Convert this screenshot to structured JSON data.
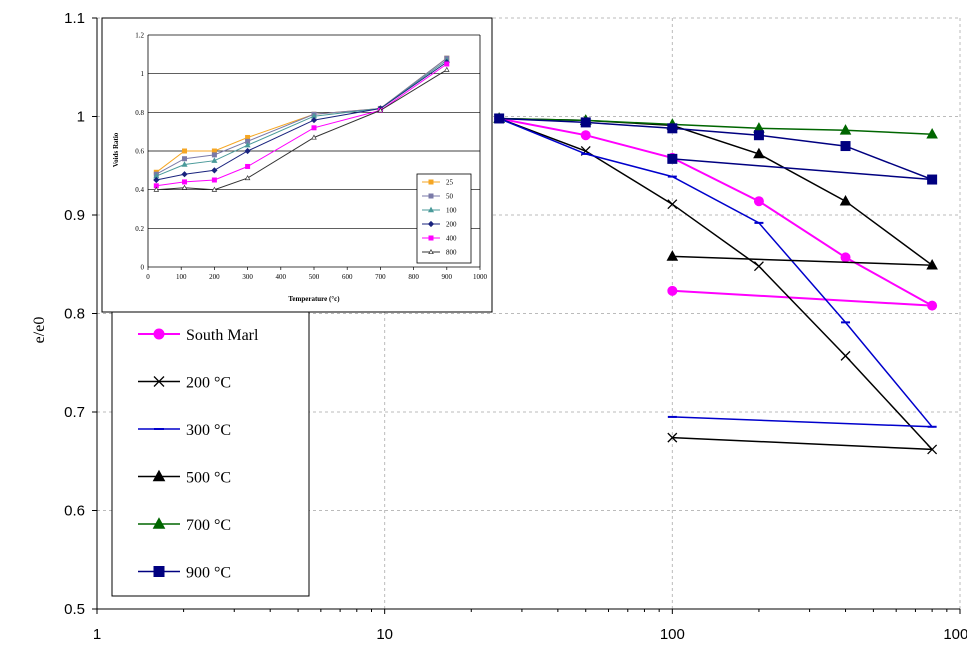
{
  "chart_data": [
    {
      "type": "line",
      "title": "",
      "xlabel": "",
      "ylabel": "e/e0",
      "x_scale": "log",
      "xlim": [
        1,
        1000
      ],
      "ylim": [
        0.5,
        1.1
      ],
      "x_ticks": [
        1,
        10,
        100,
        1000
      ],
      "y_ticks": [
        0.5,
        0.6,
        0.7,
        0.8,
        0.9,
        1.0,
        1.1
      ],
      "x_tick_labels": [
        "1",
        "10",
        "100",
        "1000"
      ],
      "y_tick_labels": [
        "0.5",
        "0.6",
        "0.7",
        "0.8",
        "0.9",
        "1",
        "1.1"
      ],
      "grid": true,
      "legend_position": "left",
      "series": [
        {
          "name": "South Marl",
          "color": "#ff00ff",
          "marker": "circle",
          "x": [
            25,
            50,
            100,
            200,
            400,
            800,
            100
          ],
          "y": [
            0.998,
            0.981,
            0.958,
            0.914,
            0.857,
            0.808,
            0.823
          ]
        },
        {
          "name": "200 °C",
          "color": "#000000",
          "marker": "x",
          "x": [
            25,
            50,
            100,
            200,
            400,
            800,
            100
          ],
          "y": [
            0.998,
            0.965,
            0.911,
            0.848,
            0.757,
            0.662,
            0.674
          ]
        },
        {
          "name": "300 °C",
          "color": "#0000cc",
          "marker": "dash",
          "x": [
            25,
            50,
            100,
            200,
            400,
            800,
            100
          ],
          "y": [
            0.998,
            0.962,
            0.939,
            0.892,
            0.791,
            0.685,
            0.695
          ]
        },
        {
          "name": "500 °C",
          "color": "#000000",
          "marker": "triangle",
          "x": [
            25,
            50,
            100,
            200,
            400,
            800,
            100
          ],
          "y": [
            0.998,
            0.996,
            0.991,
            0.962,
            0.914,
            0.849,
            0.858
          ]
        },
        {
          "name": "700 °C",
          "color": "#006600",
          "marker": "triangle",
          "x": [
            25,
            50,
            100,
            200,
            400,
            800
          ],
          "y": [
            0.998,
            0.996,
            0.992,
            0.988,
            0.986,
            0.982
          ]
        },
        {
          "name": "900 °C",
          "color": "#000080",
          "marker": "square",
          "x": [
            25,
            50,
            100,
            200,
            400,
            800,
            100
          ],
          "y": [
            0.998,
            0.994,
            0.988,
            0.981,
            0.97,
            0.936,
            0.957
          ]
        }
      ]
    },
    {
      "type": "line",
      "title": "",
      "xlabel": "Temperature (°c)",
      "ylabel": "Voids Ratio",
      "xlim": [
        0,
        1000
      ],
      "ylim": [
        0,
        1.2
      ],
      "x_ticks": [
        0,
        100,
        200,
        300,
        400,
        500,
        600,
        700,
        800,
        900,
        1000
      ],
      "y_ticks": [
        0,
        0.2,
        0.4,
        0.6,
        0.8,
        1,
        1.2
      ],
      "x_tick_labels": [
        "0",
        "100",
        "200",
        "300",
        "400",
        "500",
        "600",
        "700",
        "800",
        "900",
        "1000"
      ],
      "y_tick_labels": [
        "0",
        "0.2",
        "0.4",
        "0.6",
        "0.8",
        "1",
        "1.2"
      ],
      "grid": true,
      "legend_position": "bottom-right",
      "series": [
        {
          "name": "25",
          "color": "#f5a623",
          "marker": "square",
          "x": [
            25,
            110,
            200,
            300,
            500,
            700,
            900
          ],
          "y": [
            0.49,
            0.6,
            0.6,
            0.67,
            0.79,
            0.82,
            1.08
          ]
        },
        {
          "name": "50",
          "color": "#7a7aa8",
          "marker": "square",
          "x": [
            25,
            110,
            200,
            300,
            500,
            700,
            900
          ],
          "y": [
            0.48,
            0.56,
            0.58,
            0.65,
            0.79,
            0.82,
            1.08
          ]
        },
        {
          "name": "100",
          "color": "#4a9a9a",
          "marker": "triangle",
          "x": [
            25,
            110,
            200,
            300,
            500,
            700,
            900
          ],
          "y": [
            0.47,
            0.53,
            0.55,
            0.63,
            0.78,
            0.82,
            1.07
          ]
        },
        {
          "name": "200",
          "color": "#1a237e",
          "marker": "diamond",
          "x": [
            25,
            110,
            200,
            300,
            500,
            700,
            900
          ],
          "y": [
            0.45,
            0.48,
            0.5,
            0.6,
            0.76,
            0.82,
            1.06
          ]
        },
        {
          "name": "400",
          "color": "#ff00ff",
          "marker": "square",
          "x": [
            25,
            110,
            200,
            300,
            500,
            700,
            900
          ],
          "y": [
            0.42,
            0.44,
            0.45,
            0.52,
            0.72,
            0.81,
            1.05
          ]
        },
        {
          "name": "800",
          "color": "#333333",
          "marker": "triangle-open",
          "x": [
            25,
            110,
            200,
            300,
            500,
            700,
            900
          ],
          "y": [
            0.4,
            0.41,
            0.4,
            0.46,
            0.67,
            0.81,
            1.02
          ]
        }
      ]
    }
  ]
}
